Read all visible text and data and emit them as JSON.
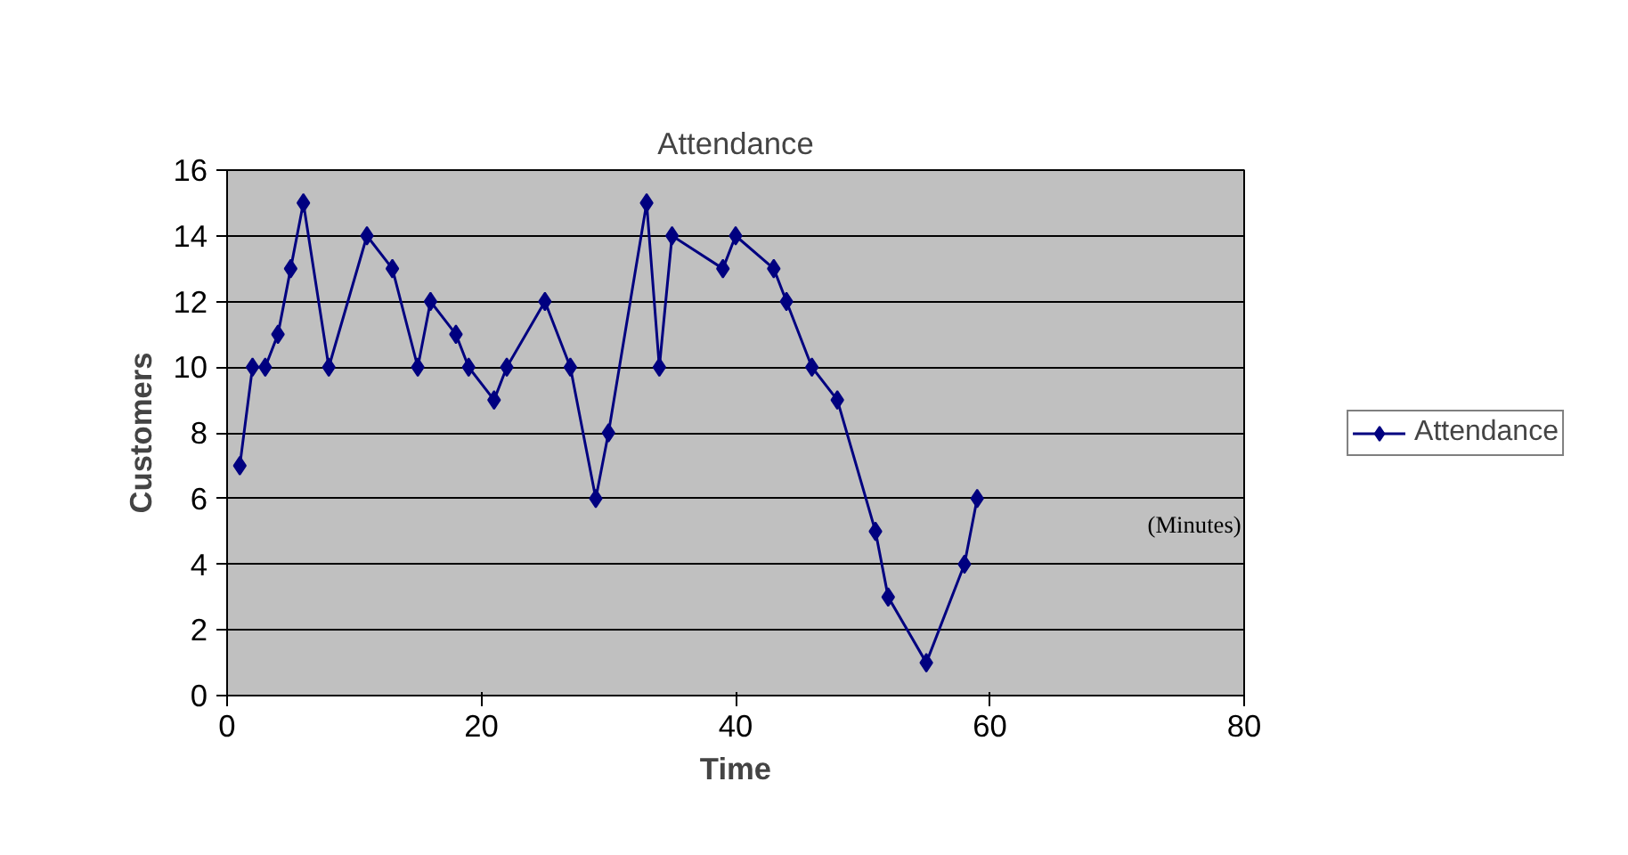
{
  "chart_data": {
    "type": "line",
    "title": "Attendance",
    "xlabel": "Time",
    "ylabel": "Customers",
    "x": [
      1,
      2,
      3,
      4,
      5,
      6,
      8,
      11,
      13,
      15,
      16,
      18,
      19,
      21,
      22,
      25,
      27,
      29,
      30,
      33,
      34,
      35,
      39,
      40,
      43,
      44,
      46,
      48,
      51,
      52,
      55,
      58,
      59
    ],
    "series": [
      {
        "name": "Attendance",
        "color": "#000080",
        "values": [
          7,
          10,
          10,
          11,
          13,
          15,
          10,
          14,
          13,
          10,
          12,
          11,
          10,
          9,
          10,
          12,
          10,
          6,
          8,
          15,
          10,
          14,
          13,
          14,
          13,
          12,
          10,
          9,
          5,
          3,
          1,
          4,
          6
        ]
      }
    ],
    "xlim": [
      0,
      80
    ],
    "xticks": [
      0,
      20,
      40,
      60,
      80
    ],
    "ylim": [
      0,
      16
    ],
    "yticks": [
      0,
      2,
      4,
      6,
      8,
      10,
      12,
      14,
      16
    ],
    "grid": "y",
    "legend": "right",
    "marker": "diamond",
    "line_style": "solid",
    "annotations": [
      "(Minutes)"
    ]
  }
}
